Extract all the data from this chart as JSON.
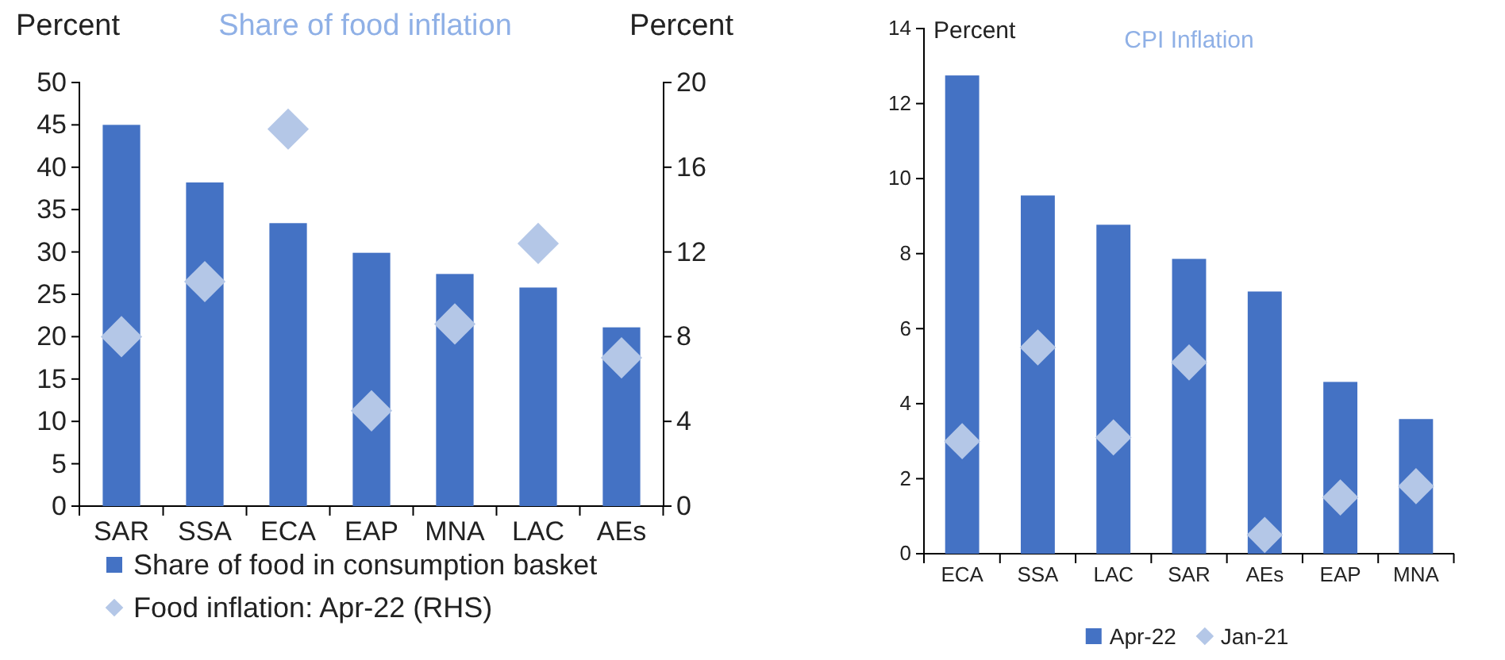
{
  "chart_data": [
    {
      "type": "bar",
      "title": "Share of food inflation",
      "ylabel": "Percent",
      "y2label": "Percent",
      "categories": [
        "SAR",
        "SSA",
        "ECA",
        "EAP",
        "MNA",
        "LAC",
        "AEs"
      ],
      "series": [
        {
          "name": "Share of food in consumption basket",
          "type": "bar",
          "color": "#4472c4",
          "values": [
            45,
            38.2,
            33.4,
            29.9,
            27.4,
            25.8,
            21.1
          ]
        },
        {
          "name": "Food inflation: Apr-22 (RHS)",
          "type": "scatter",
          "axis": "y2",
          "color": "#b4c7e7",
          "values": [
            8.0,
            10.6,
            17.8,
            4.5,
            8.6,
            12.4,
            7.0
          ]
        }
      ],
      "ylim": [
        0,
        50
      ],
      "yticks": [
        0,
        5,
        10,
        15,
        20,
        25,
        30,
        35,
        40,
        45,
        50
      ],
      "y2lim": [
        0,
        20
      ],
      "y2ticks": [
        0,
        4,
        8,
        12,
        16,
        20
      ],
      "marker": "diamond",
      "legend": "bottom",
      "grid": false
    },
    {
      "type": "bar",
      "title": "CPI Inflation",
      "ylabel": "Percent",
      "categories": [
        "ECA",
        "SSA",
        "LAC",
        "SAR",
        "AEs",
        "EAP",
        "MNA"
      ],
      "series": [
        {
          "name": "Apr-22",
          "type": "bar",
          "color": "#4472c4",
          "values": [
            12.75,
            9.55,
            8.77,
            7.86,
            6.99,
            4.58,
            3.59
          ]
        },
        {
          "name": "Jan-21",
          "type": "scatter",
          "color": "#b4c7e7",
          "values": [
            3.0,
            5.5,
            3.1,
            5.1,
            0.5,
            1.5,
            1.8
          ]
        }
      ],
      "ylim": [
        0,
        14
      ],
      "yticks": [
        0,
        2,
        4,
        6,
        8,
        10,
        12,
        14
      ],
      "marker": "diamond",
      "legend": "bottom",
      "grid": false
    }
  ]
}
